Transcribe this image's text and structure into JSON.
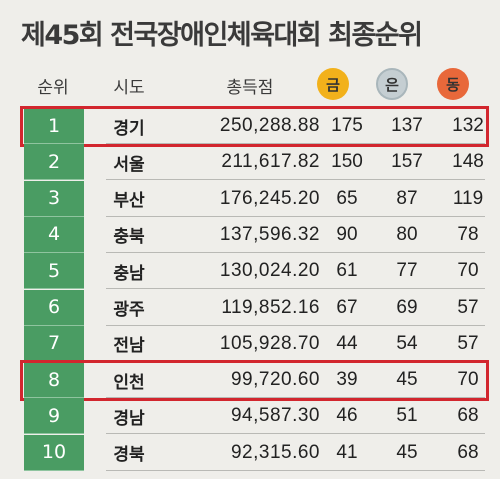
{
  "title": "제45회 전국장애인체육대회 최종순위",
  "headers": {
    "rank": "순위",
    "region": "시도",
    "score": "총득점",
    "gold": "금",
    "silver": "은",
    "bronze": "동"
  },
  "colors": {
    "rank_bg": "#4a9c63",
    "gold": "#f2b11b",
    "silver": "#c5ced2",
    "bronze": "#e8683a",
    "highlight": "#d2262e"
  },
  "rows": [
    {
      "rank": "1",
      "region": "경기",
      "score": "250,288.88",
      "gold": "175",
      "silver": "137",
      "bronze": "132"
    },
    {
      "rank": "2",
      "region": "서울",
      "score": "211,617.82",
      "gold": "150",
      "silver": "157",
      "bronze": "148"
    },
    {
      "rank": "3",
      "region": "부산",
      "score": "176,245.20",
      "gold": "65",
      "silver": "87",
      "bronze": "119"
    },
    {
      "rank": "4",
      "region": "충북",
      "score": "137,596.32",
      "gold": "90",
      "silver": "80",
      "bronze": "78"
    },
    {
      "rank": "5",
      "region": "충남",
      "score": "130,024.20",
      "gold": "61",
      "silver": "77",
      "bronze": "70"
    },
    {
      "rank": "6",
      "region": "광주",
      "score": "119,852.16",
      "gold": "67",
      "silver": "69",
      "bronze": "57"
    },
    {
      "rank": "7",
      "region": "전남",
      "score": "105,928.70",
      "gold": "44",
      "silver": "54",
      "bronze": "57"
    },
    {
      "rank": "8",
      "region": "인천",
      "score": "99,720.60",
      "gold": "39",
      "silver": "45",
      "bronze": "70"
    },
    {
      "rank": "9",
      "region": "경남",
      "score": "94,587.30",
      "gold": "46",
      "silver": "51",
      "bronze": "68"
    },
    {
      "rank": "10",
      "region": "경북",
      "score": "92,315.60",
      "gold": "41",
      "silver": "45",
      "bronze": "68"
    }
  ],
  "highlighted_regions": [
    "경기",
    "인천"
  ]
}
